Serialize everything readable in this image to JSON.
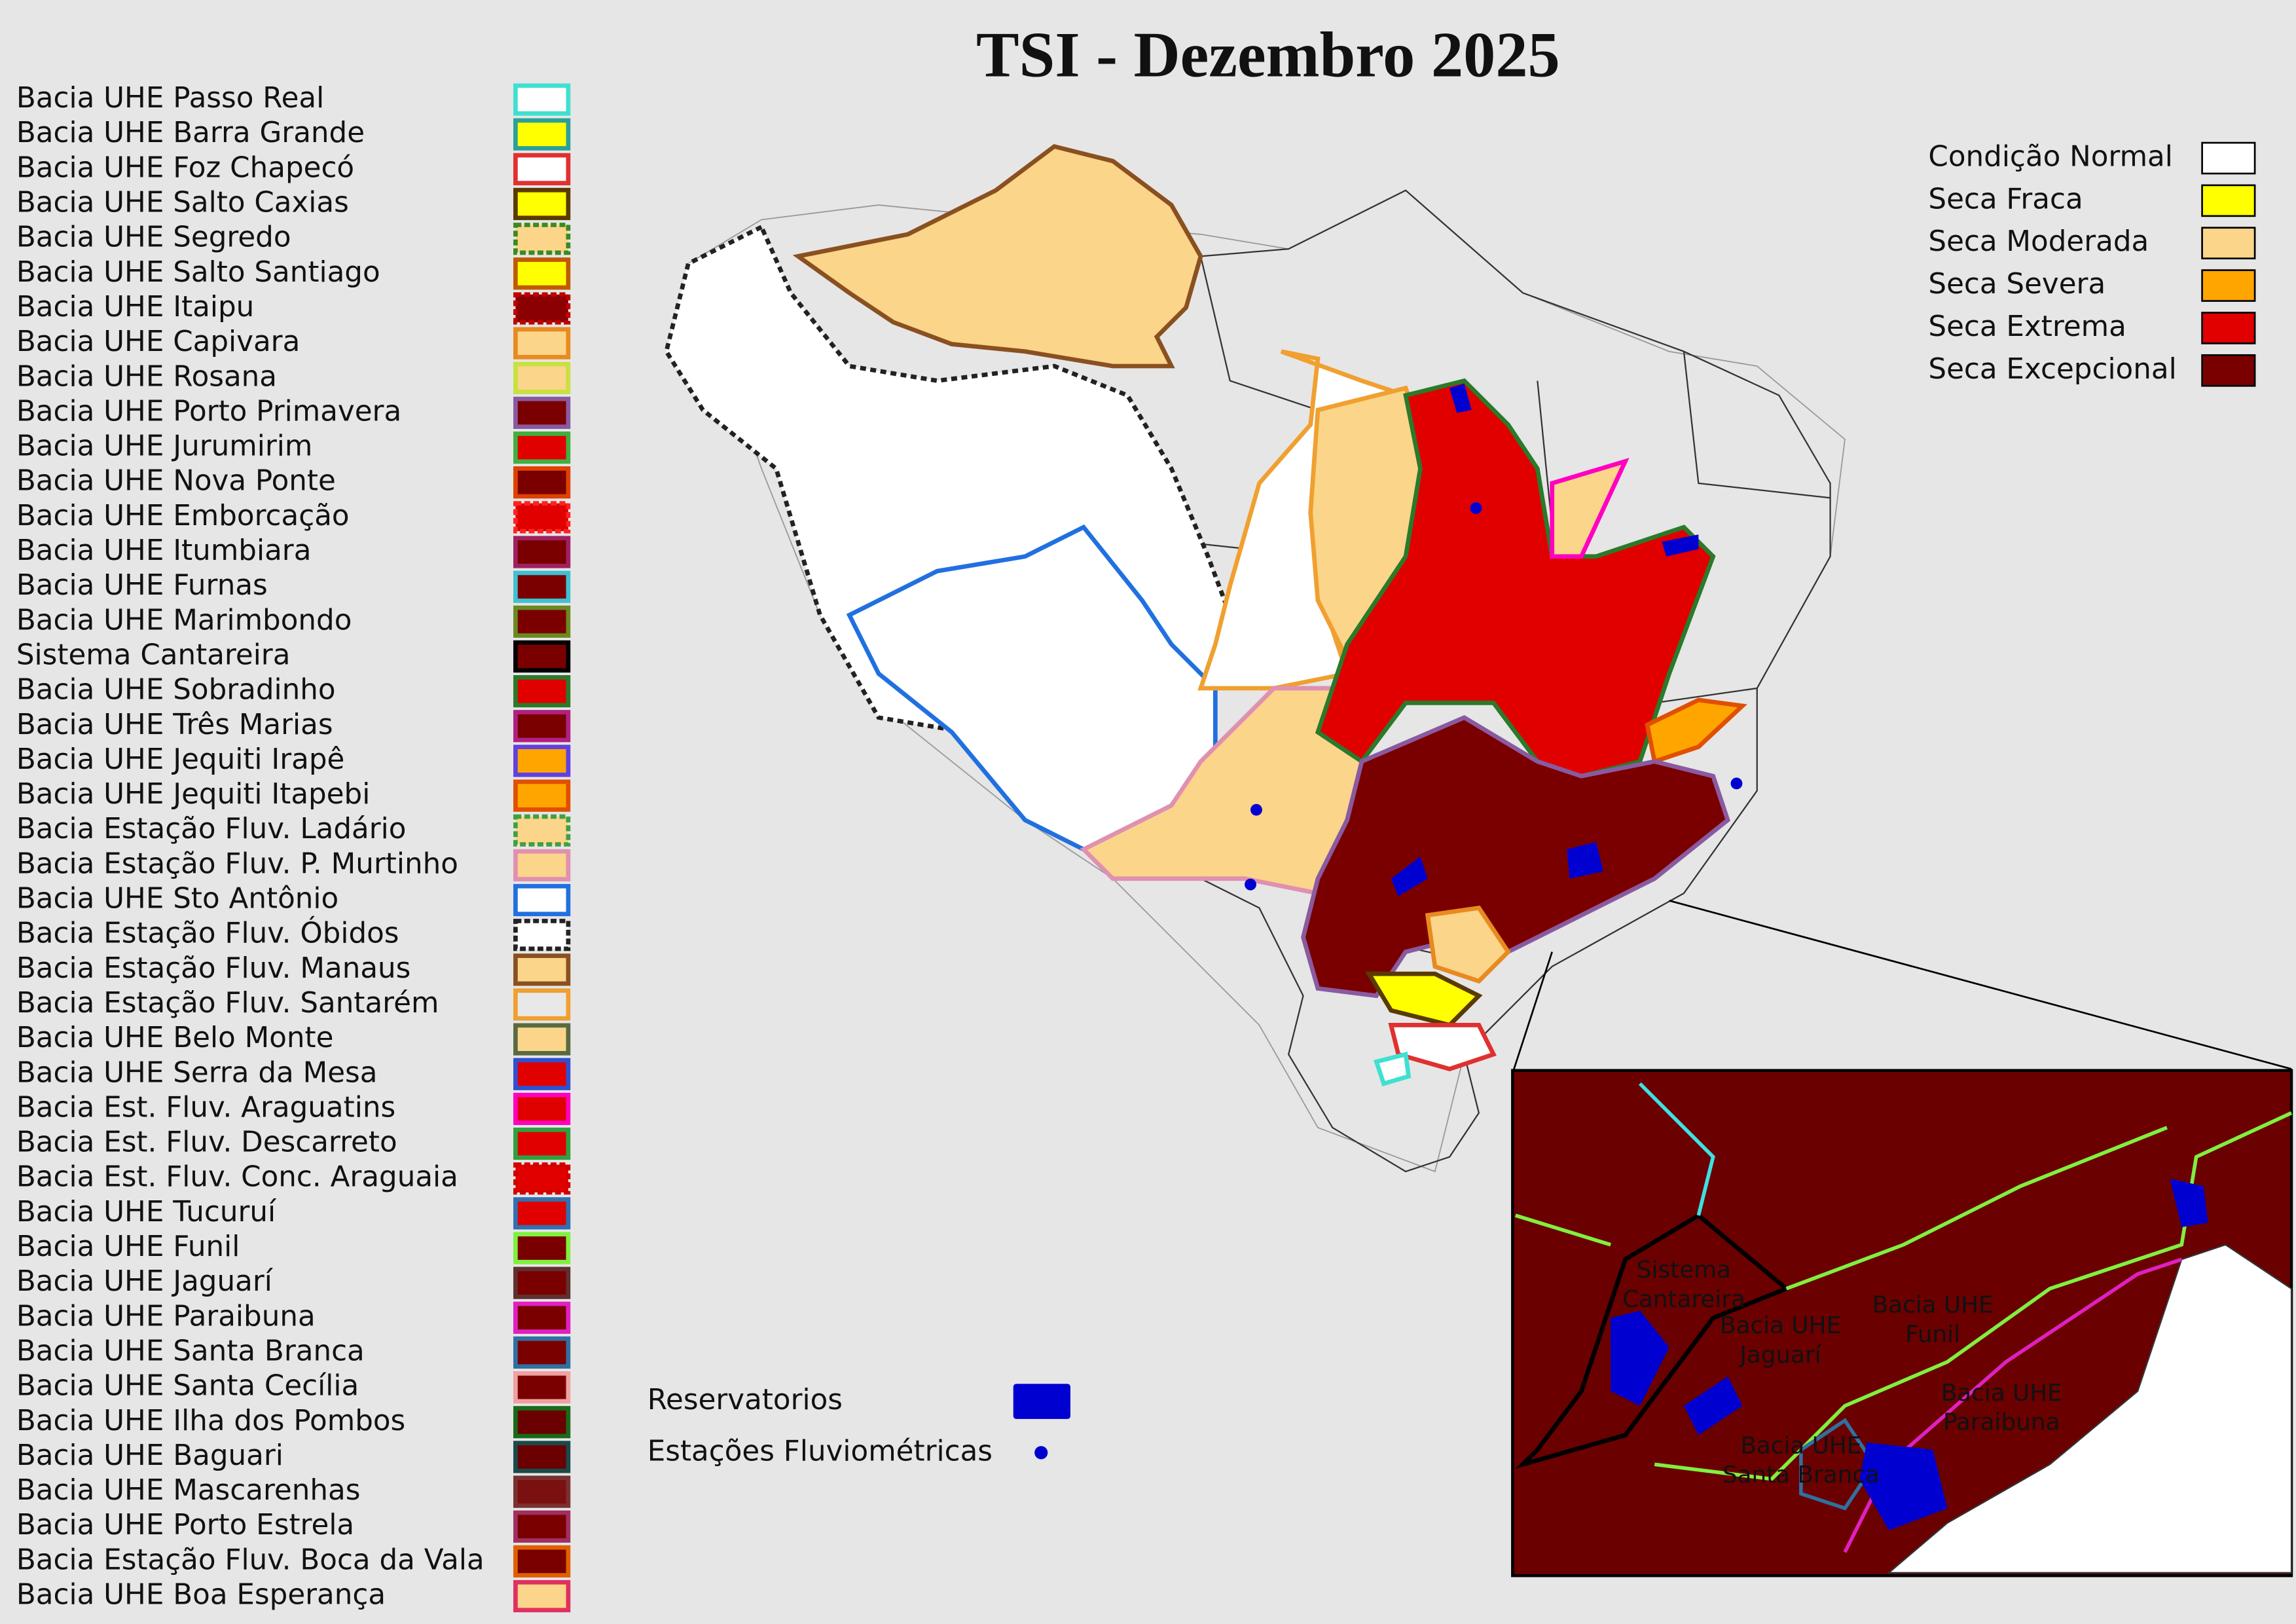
{
  "title": "TSI - Dezembro 2025",
  "basin_legend": [
    {
      "label": "Bacia UHE Passo Real",
      "fill": "#ffffff",
      "border": "#40e0d0"
    },
    {
      "label": "Bacia UHE Barra Grande",
      "fill": "#ffff00",
      "border": "#2aa198"
    },
    {
      "label": "Bacia UHE Foz Chapecó",
      "fill": "#ffffff",
      "border": "#e03030"
    },
    {
      "label": "Bacia UHE Salto Caxias",
      "fill": "#ffff00",
      "border": "#5a3a00"
    },
    {
      "label": "Bacia UHE Segredo",
      "fill": "#fad58a",
      "border": "#3a8a20",
      "dashed": true
    },
    {
      "label": "Bacia UHE Salto Santiago",
      "fill": "#ffff00",
      "border": "#c05a00"
    },
    {
      "label": "Bacia UHE Itaipu",
      "fill": "#8b0000",
      "border": "#c00000",
      "dashed": true
    },
    {
      "label": "Bacia UHE Capivara",
      "fill": "#fad58a",
      "border": "#e88a20"
    },
    {
      "label": "Bacia UHE Rosana",
      "fill": "#fad58a",
      "border": "#c8e040"
    },
    {
      "label": "Bacia UHE Porto Primavera",
      "fill": "#7a0000",
      "border": "#8a5aa0"
    },
    {
      "label": "Bacia UHE Jurumirim",
      "fill": "#e00000",
      "border": "#40b040"
    },
    {
      "label": "Bacia UHE Nova Ponte",
      "fill": "#7a0000",
      "border": "#e04000"
    },
    {
      "label": "Bacia UHE Emborcação",
      "fill": "#e00000",
      "border": "#ff2020",
      "dashed": true
    },
    {
      "label": "Bacia UHE Itumbiara",
      "fill": "#7a0000",
      "border": "#a02060"
    },
    {
      "label": "Bacia UHE Furnas",
      "fill": "#7a0000",
      "border": "#40c0d0"
    },
    {
      "label": "Bacia UHE Marimbondo",
      "fill": "#7a0000",
      "border": "#6a8a20"
    },
    {
      "label": "Sistema Cantareira",
      "fill": "#7a0000",
      "border": "#000000"
    },
    {
      "label": "Bacia UHE Sobradinho",
      "fill": "#e00000",
      "border": "#2a7a2a"
    },
    {
      "label": "Bacia UHE Três Marias",
      "fill": "#7a0000",
      "border": "#b02080"
    },
    {
      "label": "Bacia UHE Jequiti Irapê",
      "fill": "#ffa500",
      "border": "#6040e0"
    },
    {
      "label": "Bacia UHE Jequiti Itapebi",
      "fill": "#ffa500",
      "border": "#e05000"
    },
    {
      "label": "Bacia Estação Fluv. Ladário",
      "fill": "#fad58a",
      "border": "#40a040",
      "dashed": true
    },
    {
      "label": "Bacia Estação Fluv. P. Murtinho",
      "fill": "#fad58a",
      "border": "#e090b0"
    },
    {
      "label": "Bacia UHE Sto Antônio",
      "fill": "#ffffff",
      "border": "#2070e0"
    },
    {
      "label": "Bacia Estação Fluv. Óbidos",
      "fill": "#ffffff",
      "border": "#222222",
      "dashed": true
    },
    {
      "label": "Bacia Estação Fluv. Manaus",
      "fill": "#fad58a",
      "border": "#8a5020"
    },
    {
      "label": "Bacia Estação Fluv. Santarém",
      "fill": "#e8e8e8",
      "border": "#f0a030"
    },
    {
      "label": "Bacia UHE Belo Monte",
      "fill": "#fad58a",
      "border": "#5a6a40"
    },
    {
      "label": "Bacia UHE Serra da Mesa",
      "fill": "#e00000",
      "border": "#3050d0"
    },
    {
      "label": "Bacia Est. Fluv. Araguatins",
      "fill": "#e00000",
      "border": "#ff00c0"
    },
    {
      "label": "Bacia Est. Fluv. Descarreto",
      "fill": "#e00000",
      "border": "#30a040"
    },
    {
      "label": "Bacia Est. Fluv. Conc. Araguaia",
      "fill": "#e00000",
      "border": "#d00000",
      "dashed": true
    },
    {
      "label": "Bacia UHE Tucuruí",
      "fill": "#e00000",
      "border": "#3070b0"
    },
    {
      "label": "Bacia UHE Funil",
      "fill": "#7a0000",
      "border": "#80f040"
    },
    {
      "label": "Bacia UHE Jaguarí",
      "fill": "#7a0000",
      "border": "#603030"
    },
    {
      "label": "Bacia UHE Paraibuna",
      "fill": "#7a0000",
      "border": "#e020c0"
    },
    {
      "label": "Bacia UHE Santa Branca",
      "fill": "#7a0000",
      "border": "#3070a0"
    },
    {
      "label": "Bacia UHE Santa Cecília",
      "fill": "#7a0000",
      "border": "#f0a0a0"
    },
    {
      "label": "Bacia UHE Ilha dos Pombos",
      "fill": "#6a0000",
      "border": "#1a6a1a"
    },
    {
      "label": "Bacia UHE Baguari",
      "fill": "#6a0000",
      "border": "#1a4a4a"
    },
    {
      "label": "Bacia UHE Mascarenhas",
      "fill": "#7a1010",
      "border": "#7a3030"
    },
    {
      "label": "Bacia UHE Porto Estrela",
      "fill": "#7a0000",
      "border": "#a03060"
    },
    {
      "label": "Bacia Estação Fluv. Boca da Vala",
      "fill": "#7a0000",
      "border": "#e06000"
    },
    {
      "label": "Bacia UHE Boa Esperança",
      "fill": "#fad58a",
      "border": "#e03060"
    }
  ],
  "condition_legend": [
    {
      "label": "Condição Normal",
      "color": "#ffffff"
    },
    {
      "label": "Seca Fraca",
      "color": "#ffff00"
    },
    {
      "label": "Seca Moderada",
      "color": "#fad58a"
    },
    {
      "label": "Seca Severa",
      "color": "#ffa500"
    },
    {
      "label": "Seca Extrema",
      "color": "#e00000"
    },
    {
      "label": "Seca Excepcional",
      "color": "#7a0000"
    }
  ],
  "feature_legend": [
    {
      "label": "Reservatorios",
      "color": "#0000d0",
      "symbol": "rect"
    },
    {
      "label": "Estações Fluviométricas",
      "color": "#0000d0",
      "symbol": "dot"
    }
  ],
  "inset_labels": [
    {
      "lines": [
        "Sistema",
        "Cantareira"
      ]
    },
    {
      "lines": [
        "Bacia UHE",
        "Jaguarí"
      ]
    },
    {
      "lines": [
        "Bacia UHE",
        "Funil"
      ]
    },
    {
      "lines": [
        "Bacia UHE",
        "Paraibuna"
      ]
    },
    {
      "lines": [
        "Bacia UHE",
        "Santa Branca"
      ]
    }
  ]
}
